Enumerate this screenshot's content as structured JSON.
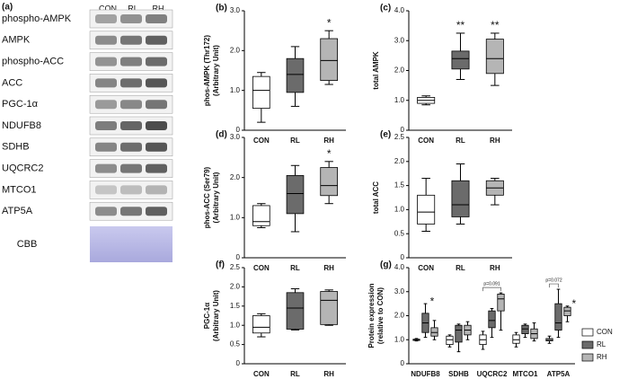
{
  "blot": {
    "panel_label": "(a)",
    "lanes": [
      "CON",
      "RL",
      "RH"
    ],
    "proteins": [
      "phospho-AMPK",
      "AMPK",
      "phospho-ACC",
      "ACC",
      "PGC-1α",
      "NDUFB8",
      "SDHB",
      "UQCRC2",
      "MTCO1",
      "ATP5A"
    ],
    "stain": "CBB"
  },
  "chart_data": [
    {
      "type": "box",
      "panel_label": "(b)",
      "ylabel": [
        "phos-AMPK (Thr172)",
        "(Arbitrary Unit)"
      ],
      "categories": [
        "CON",
        "RL",
        "RH"
      ],
      "colors": [
        "#ffffff",
        "#6b6b6b",
        "#b5b5b5"
      ],
      "boxes": [
        {
          "min": 0.2,
          "q1": 0.55,
          "median": 1.0,
          "q3": 1.35,
          "max": 1.45
        },
        {
          "min": 0.6,
          "q1": 0.95,
          "median": 1.4,
          "q3": 1.8,
          "max": 2.1
        },
        {
          "min": 1.15,
          "q1": 1.25,
          "median": 1.75,
          "q3": 2.3,
          "max": 2.5
        }
      ],
      "annotations": [
        {
          "text": "*",
          "category": "RH"
        }
      ],
      "ylim": [
        0,
        3
      ],
      "yticks": [
        0,
        {
          "value": 1,
          "label": "1.0"
        },
        {
          "value": 2,
          "label": "2.0"
        },
        {
          "value": 3,
          "label": "3.0"
        }
      ]
    },
    {
      "type": "box",
      "panel_label": "(c)",
      "ylabel": [
        "total AMPK"
      ],
      "categories": [
        "CON",
        "RL",
        "RH"
      ],
      "colors": [
        "#ffffff",
        "#6b6b6b",
        "#b5b5b5"
      ],
      "boxes": [
        {
          "min": 0.85,
          "q1": 0.9,
          "median": 1.0,
          "q3": 1.1,
          "max": 1.15
        },
        {
          "min": 1.7,
          "q1": 2.05,
          "median": 2.4,
          "q3": 2.65,
          "max": 3.25
        },
        {
          "min": 1.5,
          "q1": 1.9,
          "median": 2.4,
          "q3": 3.05,
          "max": 3.25
        }
      ],
      "annotations": [
        {
          "text": "**",
          "category": "RL"
        },
        {
          "text": "**",
          "category": "RH"
        }
      ],
      "ylim": [
        0,
        4
      ],
      "yticks": [
        0,
        {
          "value": 1,
          "label": "1.0"
        },
        {
          "value": 2,
          "label": "2.0"
        },
        {
          "value": 3,
          "label": "3.0"
        },
        {
          "value": 4,
          "label": "4.0"
        }
      ]
    },
    {
      "type": "box",
      "panel_label": "(d)",
      "ylabel": [
        "phos-ACC (Ser79)",
        "(Arbitrary Unit)"
      ],
      "categories": [
        "CON",
        "RL",
        "RH"
      ],
      "colors": [
        "#ffffff",
        "#6b6b6b",
        "#b5b5b5"
      ],
      "boxes": [
        {
          "min": 0.75,
          "q1": 0.8,
          "median": 0.9,
          "q3": 1.3,
          "max": 1.35
        },
        {
          "min": 0.65,
          "q1": 1.1,
          "median": 1.6,
          "q3": 2.05,
          "max": 2.3
        },
        {
          "min": 1.35,
          "q1": 1.55,
          "median": 1.8,
          "q3": 2.25,
          "max": 2.4
        }
      ],
      "annotations": [
        {
          "text": "*",
          "category": "RH"
        }
      ],
      "ylim": [
        0,
        3
      ],
      "yticks": [
        0,
        {
          "value": 1,
          "label": "1.0"
        },
        {
          "value": 2,
          "label": "2.0"
        },
        {
          "value": 3,
          "label": "3.0"
        }
      ]
    },
    {
      "type": "box",
      "panel_label": "(e)",
      "ylabel": [
        "total ACC"
      ],
      "categories": [
        "CON",
        "RL",
        "RH"
      ],
      "colors": [
        "#ffffff",
        "#6b6b6b",
        "#b5b5b5"
      ],
      "boxes": [
        {
          "min": 0.55,
          "q1": 0.7,
          "median": 0.95,
          "q3": 1.3,
          "max": 1.65
        },
        {
          "min": 0.7,
          "q1": 0.85,
          "median": 1.1,
          "q3": 1.6,
          "max": 1.95
        },
        {
          "min": 1.1,
          "q1": 1.3,
          "median": 1.45,
          "q3": 1.6,
          "max": 1.65
        }
      ],
      "ylim": [
        0,
        2.5
      ],
      "yticks": [
        0,
        0.5,
        {
          "value": 1,
          "label": "1.0"
        },
        1.5,
        {
          "value": 2,
          "label": "2.0"
        },
        2.5
      ]
    },
    {
      "type": "box",
      "panel_label": "(f)",
      "ylabel": [
        "PGC-1α",
        "(Arbitrary Unit)"
      ],
      "categories": [
        "CON",
        "RL",
        "RH"
      ],
      "colors": [
        "#ffffff",
        "#6b6b6b",
        "#b5b5b5"
      ],
      "boxes": [
        {
          "min": 0.7,
          "q1": 0.8,
          "median": 0.95,
          "q3": 1.25,
          "max": 1.3
        },
        {
          "min": 0.88,
          "q1": 0.9,
          "median": 1.45,
          "q3": 1.85,
          "max": 1.95
        },
        {
          "min": 1.0,
          "q1": 1.02,
          "median": 1.65,
          "q3": 1.88,
          "max": 1.92
        }
      ],
      "ylim": [
        0,
        2.5
      ],
      "yticks": [
        0,
        0.5,
        {
          "value": 1,
          "label": "1.0"
        },
        1.5,
        {
          "value": 2,
          "label": "2.0"
        },
        2.5
      ]
    },
    {
      "type": "box",
      "panel_label": "(g)",
      "ylabel": [
        "Protein expression",
        "(relative to CON)"
      ],
      "categories": [
        "NDUFB8",
        "SDHB",
        "UQCRC2",
        "MTCO1",
        "ATP5A"
      ],
      "series": [
        {
          "name": "CON",
          "color": "#ffffff",
          "boxes": [
            {
              "min": 0.95,
              "q1": 0.97,
              "median": 1.0,
              "q3": 1.02,
              "max": 1.05
            },
            {
              "min": 0.7,
              "q1": 0.8,
              "median": 1.0,
              "q3": 1.15,
              "max": 1.2
            },
            {
              "min": 0.6,
              "q1": 0.8,
              "median": 1.0,
              "q3": 1.2,
              "max": 1.35
            },
            {
              "min": 0.7,
              "q1": 0.85,
              "median": 1.0,
              "q3": 1.2,
              "max": 1.3
            },
            {
              "min": 0.85,
              "q1": 0.95,
              "median": 1.0,
              "q3": 1.05,
              "max": 1.15
            }
          ]
        },
        {
          "name": "RL",
          "color": "#6b6b6b",
          "boxes": [
            {
              "min": 1.1,
              "q1": 1.3,
              "median": 1.7,
              "q3": 2.1,
              "max": 2.5
            },
            {
              "min": 0.5,
              "q1": 0.9,
              "median": 1.4,
              "q3": 1.6,
              "max": 1.65
            },
            {
              "min": 1.1,
              "q1": 1.5,
              "median": 1.8,
              "q3": 2.2,
              "max": 2.3
            },
            {
              "min": 1.1,
              "q1": 1.25,
              "median": 1.45,
              "q3": 1.6,
              "max": 1.65
            },
            {
              "min": 1.1,
              "q1": 1.4,
              "median": 1.7,
              "q3": 2.5,
              "max": 3.1
            }
          ]
        },
        {
          "name": "RH",
          "color": "#b5b5b5",
          "boxes": [
            {
              "min": 1.0,
              "q1": 1.15,
              "median": 1.3,
              "q3": 1.5,
              "max": 1.8
            },
            {
              "min": 1.0,
              "q1": 1.2,
              "median": 1.4,
              "q3": 1.6,
              "max": 1.75
            },
            {
              "min": 1.4,
              "q1": 2.2,
              "median": 2.7,
              "q3": 2.9,
              "max": 2.95
            },
            {
              "min": 0.95,
              "q1": 1.05,
              "median": 1.25,
              "q3": 1.45,
              "max": 1.7
            },
            {
              "min": 1.75,
              "q1": 2.0,
              "median": 2.2,
              "q3": 2.35,
              "max": 2.4
            }
          ]
        }
      ],
      "annotations": [
        {
          "text": "*",
          "category": "NDUFB8",
          "series": "RL"
        },
        {
          "text": "p=0.091",
          "category": "UQCRC2",
          "bracket": [
            "CON",
            "RH"
          ]
        },
        {
          "text": "p=0.072",
          "category": "ATP5A",
          "bracket": [
            "CON",
            "RL"
          ]
        },
        {
          "text": "*",
          "category": "ATP5A",
          "series": "RH"
        }
      ],
      "ylim": [
        0,
        4
      ],
      "yticks": [
        0,
        {
          "value": 1,
          "label": "1.0"
        },
        {
          "value": 2,
          "label": "2.0"
        },
        {
          "value": 3,
          "label": "3.0"
        },
        {
          "value": 4,
          "label": "4.0"
        }
      ]
    }
  ]
}
